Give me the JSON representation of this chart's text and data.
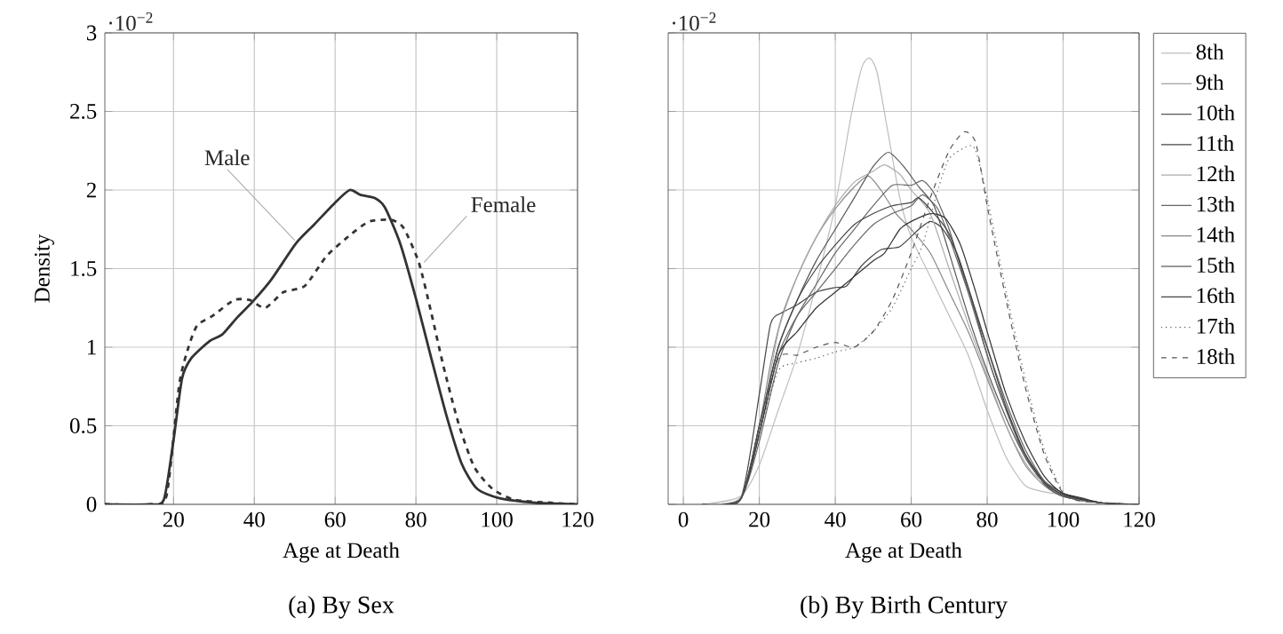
{
  "chart_data": [
    {
      "type": "line",
      "title": "(a) By Sex",
      "xlabel": "Age at Death",
      "ylabel": "Density",
      "xlim": [
        3,
        120
      ],
      "ylim": [
        0,
        3
      ],
      "xticks": [
        20,
        40,
        60,
        80,
        100,
        120
      ],
      "yticks": [
        0,
        0.5,
        1,
        1.5,
        2,
        2.5,
        3
      ],
      "grid": true,
      "legend": false,
      "annotations": [
        "·10$^{−2}$",
        {
          "text": "Male",
          "x": 50,
          "y": 1.68
        },
        {
          "text": "Female",
          "x": 82,
          "y": 1.54
        }
      ],
      "series": [
        {
          "color": "#333333",
          "line_style": "solid",
          "x": [
            3,
            13.8,
            17.6,
            20,
            22.1,
            24.4,
            29,
            32,
            35.8,
            39.6,
            44.2,
            50.3,
            54.8,
            60,
            63.6,
            66.2,
            69.7,
            72.3,
            76.1,
            80,
            83.7,
            87.5,
            91.3,
            95.1,
            100.5,
            109.6,
            120
          ],
          "values": [
            0,
            0,
            0.03,
            0.41,
            0.8,
            0.93,
            1.04,
            1.08,
            1.19,
            1.29,
            1.43,
            1.66,
            1.78,
            1.92,
            2.0,
            1.97,
            1.95,
            1.89,
            1.66,
            1.31,
            0.94,
            0.57,
            0.26,
            0.1,
            0.04,
            0.01,
            0
          ]
        },
        {
          "color": "#333333",
          "line_style": "dashed",
          "x": [
            3,
            14.5,
            18.3,
            21.4,
            23.7,
            25.9,
            29.7,
            35,
            38.9,
            42.7,
            47.2,
            52.5,
            57.9,
            64,
            68.5,
            73.8,
            76.9,
            80.7,
            83.7,
            86.8,
            90.6,
            94.4,
            98.9,
            104.3,
            113.4,
            120
          ],
          "values": [
            0,
            0,
            0.06,
            0.76,
            1.0,
            1.14,
            1.2,
            1.3,
            1.3,
            1.25,
            1.35,
            1.39,
            1.58,
            1.72,
            1.8,
            1.81,
            1.76,
            1.54,
            1.23,
            0.88,
            0.51,
            0.24,
            0.1,
            0.03,
            0.01,
            0
          ]
        }
      ]
    },
    {
      "type": "line",
      "title": "(b) By Birth Century",
      "xlabel": "Age at Death",
      "xlim": [
        -4,
        120
      ],
      "ylim": [
        0,
        3
      ],
      "xticks": [
        0,
        20,
        40,
        60,
        80,
        100,
        120
      ],
      "yticks": [
        0,
        0.5,
        1,
        1.5,
        2,
        2.5,
        3
      ],
      "grid": true,
      "legend": "right",
      "tick_labels": "x",
      "annotations": [
        "·10$^{−2}$"
      ],
      "series": [
        {
          "name": "8th",
          "color": "#bdbdbd",
          "line_style": "solid",
          "x": [
            5,
            15,
            20,
            25,
            30,
            35,
            40,
            44,
            47,
            49,
            51,
            54,
            57,
            60,
            65,
            70,
            75,
            80,
            85,
            90,
            95,
            100,
            105,
            120
          ],
          "values": [
            0,
            0.05,
            0.25,
            0.6,
            0.95,
            1.4,
            1.9,
            2.45,
            2.78,
            2.84,
            2.75,
            2.35,
            1.95,
            1.7,
            1.45,
            1.2,
            0.95,
            0.6,
            0.3,
            0.12,
            0.08,
            0.06,
            0.02,
            0
          ]
        },
        {
          "name": "9th",
          "color": "#888888",
          "line_style": "solid",
          "x": [
            5,
            15,
            20,
            23,
            26,
            30,
            35,
            40,
            45,
            48.7,
            52,
            56,
            60,
            65,
            70,
            75,
            80,
            85,
            90,
            95,
            100,
            110,
            120
          ],
          "values": [
            0,
            0.04,
            0.5,
            0.9,
            1.2,
            1.45,
            1.7,
            1.88,
            2.02,
            2.09,
            2.0,
            1.85,
            1.75,
            1.6,
            1.35,
            1.1,
            0.8,
            0.5,
            0.25,
            0.12,
            0.05,
            0.01,
            0
          ]
        },
        {
          "name": "10th",
          "color": "#555555",
          "line_style": "solid",
          "x": [
            5,
            15,
            20,
            25,
            30,
            35,
            40,
            45,
            50,
            54,
            58,
            62,
            66,
            70,
            75,
            80,
            85,
            90,
            95,
            100,
            110,
            120
          ],
          "values": [
            0,
            0.03,
            0.5,
            1.0,
            1.3,
            1.55,
            1.75,
            1.95,
            2.15,
            2.24,
            2.15,
            2.02,
            1.9,
            1.6,
            1.2,
            0.85,
            0.55,
            0.3,
            0.13,
            0.05,
            0.01,
            0
          ]
        },
        {
          "name": "11th",
          "color": "#444444",
          "line_style": "solid",
          "x": [
            5,
            15,
            20,
            23,
            26,
            30,
            35,
            40,
            43,
            47,
            52,
            57,
            62,
            65,
            68,
            72,
            76,
            80,
            85,
            90,
            95,
            100,
            105,
            110,
            120
          ],
          "values": [
            0,
            0.03,
            0.7,
            1.15,
            1.22,
            1.27,
            1.35,
            1.38,
            1.39,
            1.52,
            1.62,
            1.64,
            1.75,
            1.8,
            1.76,
            1.6,
            1.3,
            0.95,
            0.6,
            0.32,
            0.15,
            0.07,
            0.04,
            0.01,
            0
          ]
        },
        {
          "name": "12th",
          "color": "#aaaaaa",
          "line_style": "solid",
          "x": [
            5,
            15,
            20,
            25,
            30,
            35,
            40,
            45,
            50,
            53,
            57,
            60,
            65,
            70,
            75,
            80,
            85,
            88,
            92,
            100,
            110,
            120
          ],
          "values": [
            0,
            0.04,
            0.45,
            1.1,
            1.45,
            1.7,
            1.9,
            2.05,
            2.12,
            2.16,
            2.1,
            2.0,
            1.85,
            1.5,
            1.15,
            0.82,
            0.5,
            0.35,
            0.2,
            0.06,
            0.01,
            0
          ]
        },
        {
          "name": "13th",
          "color": "#666666",
          "line_style": "solid",
          "x": [
            5,
            15,
            20,
            25,
            30,
            35,
            40,
            45,
            50,
            55,
            60,
            63,
            66,
            70,
            75,
            80,
            85,
            90,
            95,
            100,
            110,
            120
          ],
          "values": [
            0,
            0.03,
            0.4,
            0.9,
            1.2,
            1.4,
            1.6,
            1.75,
            1.9,
            2.03,
            2.03,
            2.06,
            1.98,
            1.75,
            1.35,
            0.95,
            0.6,
            0.3,
            0.14,
            0.06,
            0.01,
            0
          ]
        },
        {
          "name": "14th",
          "color": "#666666",
          "line_style": "solid",
          "x": [
            5,
            15,
            20,
            25,
            30,
            35,
            40,
            45,
            50,
            55,
            60,
            63,
            67,
            70,
            75,
            80,
            85,
            90,
            95,
            100,
            110,
            120
          ],
          "values": [
            0,
            0.03,
            0.45,
            0.95,
            1.2,
            1.35,
            1.5,
            1.65,
            1.78,
            1.85,
            1.9,
            1.97,
            1.88,
            1.7,
            1.35,
            1.0,
            0.65,
            0.35,
            0.15,
            0.06,
            0.01,
            0
          ]
        },
        {
          "name": "15th",
          "color": "#333333",
          "line_style": "solid",
          "x": [
            5,
            15,
            20,
            25,
            30,
            35,
            40,
            45,
            50,
            53,
            57,
            60,
            65,
            69,
            73,
            77,
            80,
            85,
            90,
            95,
            100,
            110,
            120
          ],
          "values": [
            0,
            0.03,
            0.45,
            0.95,
            1.1,
            1.25,
            1.35,
            1.45,
            1.55,
            1.6,
            1.75,
            1.8,
            1.85,
            1.82,
            1.65,
            1.35,
            1.1,
            0.7,
            0.4,
            0.18,
            0.07,
            0.01,
            0
          ]
        },
        {
          "name": "16th",
          "color": "#444444",
          "line_style": "solid",
          "x": [
            5,
            15,
            20,
            25,
            30,
            35,
            40,
            45,
            50,
            55,
            60,
            62,
            66,
            70,
            75,
            80,
            85,
            90,
            95,
            100,
            110,
            120
          ],
          "values": [
            0,
            0.03,
            0.5,
            1.0,
            1.3,
            1.5,
            1.65,
            1.78,
            1.85,
            1.9,
            1.92,
            1.95,
            1.85,
            1.72,
            1.38,
            1.0,
            0.62,
            0.32,
            0.14,
            0.06,
            0.01,
            0
          ]
        },
        {
          "name": "17th",
          "color": "#555555",
          "line_style": "dotted",
          "x": [
            5,
            15,
            20,
            25,
            30,
            35,
            40,
            45,
            50,
            55,
            60,
            63,
            67,
            70,
            75,
            77,
            80,
            85,
            90,
            95,
            100,
            105,
            120
          ],
          "values": [
            0,
            0.03,
            0.45,
            0.85,
            0.9,
            0.93,
            0.97,
            1.0,
            1.1,
            1.25,
            1.5,
            1.65,
            2.0,
            2.2,
            2.28,
            2.25,
            1.95,
            1.35,
            0.8,
            0.35,
            0.08,
            0.02,
            0
          ]
        },
        {
          "name": "18th",
          "color": "#555555",
          "line_style": "dashed",
          "x": [
            5,
            15,
            20,
            25,
            30,
            35,
            40,
            45,
            50,
            55,
            60,
            65,
            70,
            74,
            77,
            80,
            85,
            90,
            95,
            100,
            105,
            120
          ],
          "values": [
            0,
            0.03,
            0.5,
            0.93,
            0.95,
            1.0,
            1.03,
            1.0,
            1.1,
            1.3,
            1.6,
            1.95,
            2.25,
            2.37,
            2.3,
            1.9,
            1.3,
            0.75,
            0.32,
            0.07,
            0.02,
            0
          ]
        }
      ]
    }
  ]
}
